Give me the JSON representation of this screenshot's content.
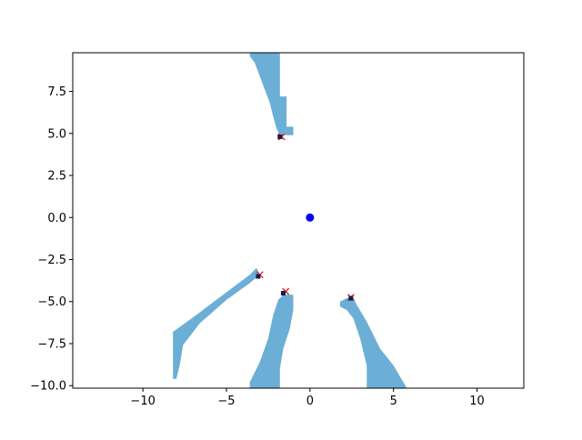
{
  "chart_data": {
    "type": "scatter",
    "title": "",
    "xlabel": "",
    "ylabel": "",
    "xlim": [
      -14.2,
      12.8
    ],
    "ylim": [
      -10.15,
      9.8
    ],
    "grid": false,
    "x_ticks": [
      {
        "value": -10,
        "label": "−10"
      },
      {
        "value": -5,
        "label": "−5"
      },
      {
        "value": 0,
        "label": "0"
      },
      {
        "value": 5,
        "label": "5"
      },
      {
        "value": 10,
        "label": "10"
      }
    ],
    "y_ticks": [
      {
        "value": -10.0,
        "label": "−10.0"
      },
      {
        "value": -7.5,
        "label": "−7.5"
      },
      {
        "value": -5.0,
        "label": "−5.0"
      },
      {
        "value": -2.5,
        "label": "−2.5"
      },
      {
        "value": 0.0,
        "label": "0.0"
      },
      {
        "value": 2.5,
        "label": "2.5"
      },
      {
        "value": 5.0,
        "label": "5.0"
      },
      {
        "value": 7.5,
        "label": "7.5"
      }
    ],
    "colors": {
      "region": "#6baed6",
      "origin": "#0000ff",
      "cross": "#e31a1c",
      "square": "#1a1a4e",
      "axes": "#000000"
    },
    "regions": [
      {
        "name": "",
        "polygon": [
          [
            -3.6,
            9.8
          ],
          [
            -1.8,
            9.8
          ],
          [
            -1.8,
            7.2
          ],
          [
            -1.4,
            7.2
          ],
          [
            -1.4,
            5.4
          ],
          [
            -1.0,
            5.4
          ],
          [
            -1.0,
            4.9
          ],
          [
            -1.8,
            4.9
          ],
          [
            -2.0,
            5.3
          ],
          [
            -2.2,
            6.0
          ],
          [
            -2.4,
            6.8
          ],
          [
            -2.7,
            7.6
          ],
          [
            -3.0,
            8.4
          ],
          [
            -3.3,
            9.2
          ],
          [
            -3.6,
            9.6
          ]
        ]
      },
      {
        "name": "",
        "polygon": [
          [
            -8.2,
            -6.8
          ],
          [
            -6.8,
            -5.8
          ],
          [
            -5.2,
            -4.6
          ],
          [
            -3.6,
            -3.4
          ],
          [
            -3.2,
            -3.0
          ],
          [
            -3.0,
            -3.4
          ],
          [
            -3.6,
            -3.9
          ],
          [
            -5.0,
            -4.9
          ],
          [
            -6.6,
            -6.3
          ],
          [
            -7.6,
            -7.6
          ],
          [
            -7.8,
            -8.8
          ],
          [
            -8.0,
            -9.6
          ],
          [
            -8.2,
            -9.6
          ]
        ]
      },
      {
        "name": "",
        "polygon": [
          [
            -1.6,
            -4.6
          ],
          [
            -1.0,
            -4.6
          ],
          [
            -1.0,
            -5.5
          ],
          [
            -1.2,
            -6.6
          ],
          [
            -1.6,
            -7.8
          ],
          [
            -1.8,
            -9.0
          ],
          [
            -1.8,
            -10.15
          ],
          [
            -3.6,
            -10.15
          ],
          [
            -3.6,
            -9.8
          ],
          [
            -3.0,
            -8.6
          ],
          [
            -2.5,
            -7.2
          ],
          [
            -2.2,
            -5.8
          ],
          [
            -1.9,
            -4.9
          ]
        ]
      },
      {
        "name": "",
        "polygon": [
          [
            2.2,
            -4.8
          ],
          [
            2.6,
            -4.8
          ],
          [
            2.8,
            -5.2
          ],
          [
            3.4,
            -6.2
          ],
          [
            4.2,
            -7.8
          ],
          [
            5.0,
            -8.8
          ],
          [
            5.8,
            -10.15
          ],
          [
            3.4,
            -10.15
          ],
          [
            3.4,
            -8.8
          ],
          [
            3.0,
            -7.2
          ],
          [
            2.6,
            -6.0
          ],
          [
            2.2,
            -5.5
          ],
          [
            1.8,
            -5.3
          ],
          [
            1.8,
            -5.0
          ]
        ]
      }
    ],
    "series": [
      {
        "name": "",
        "marker": "circle",
        "x": [
          0.0
        ],
        "y": [
          0.0
        ]
      },
      {
        "name": "",
        "marker": "x",
        "x": [
          -1.7,
          -3.0,
          -1.45,
          2.45
        ],
        "y": [
          4.8,
          -3.4,
          -4.4,
          -4.75
        ]
      },
      {
        "name": "",
        "marker": "square",
        "x": [
          -1.8,
          -3.1,
          -1.6,
          2.45
        ],
        "y": [
          4.8,
          -3.5,
          -4.5,
          -4.8
        ]
      }
    ]
  }
}
